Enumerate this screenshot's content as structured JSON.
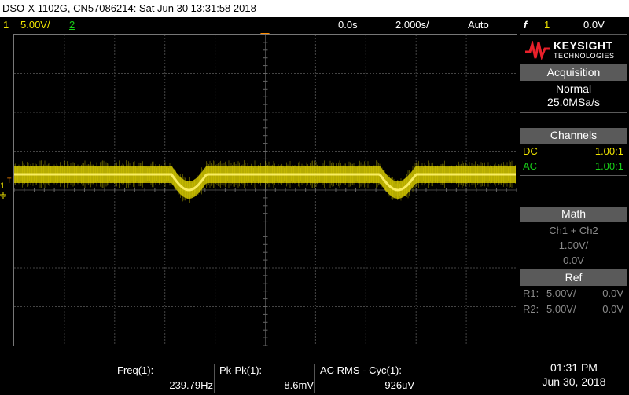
{
  "title": "DSO-X 1102G, CN57086214: Sat Jun 30 13:31:58 2018",
  "status": {
    "ch1_num": "1",
    "ch1_scale": "5.00V/",
    "ch2_num": "2",
    "time_pos": "0.0s",
    "time_scale": "2.000s/",
    "trigger_mode": "Auto",
    "trigger_symbol": "f",
    "trigger_source": "1",
    "trigger_level": "0.0V"
  },
  "markers": {
    "ch1": "1",
    "trig": "T"
  },
  "brand": {
    "name": "KEYSIGHT",
    "sub": "TECHNOLOGIES"
  },
  "acquisition": {
    "header": "Acquisition",
    "mode": "Normal",
    "rate": "25.0MSa/s"
  },
  "channels": {
    "header": "Channels",
    "items": [
      {
        "coupling": "DC",
        "probe": "1.00:1"
      },
      {
        "coupling": "AC",
        "probe": "1.00:1"
      }
    ]
  },
  "math": {
    "header": "Math",
    "func": "Ch1 + Ch2",
    "scale": "1.00V/",
    "offset": "0.0V"
  },
  "ref": {
    "header": "Ref",
    "items": [
      {
        "name": "R1:",
        "scale": "5.00V/",
        "offset": "0.0V"
      },
      {
        "name": "R2:",
        "scale": "5.00V/",
        "offset": "0.0V"
      }
    ]
  },
  "measurements": [
    {
      "label": "Freq(1):",
      "value": "239.79Hz"
    },
    {
      "label": "Pk-Pk(1):",
      "value": "8.6mV"
    },
    {
      "label": "AC RMS - Cyc(1):",
      "value": "926uV"
    }
  ],
  "clock": {
    "time": "01:31 PM",
    "date": "Jun 30, 2018"
  },
  "colors": {
    "ch1": "#f2e600",
    "ch2": "#18d018",
    "panel_header": "#5a5a5a"
  }
}
